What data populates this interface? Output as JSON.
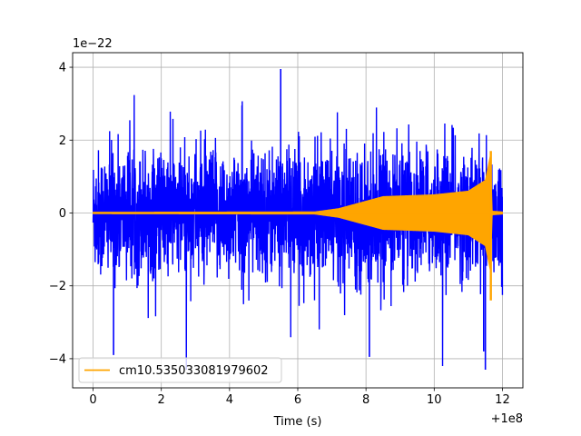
{
  "chart_data": {
    "type": "line",
    "xlabel": "Time (s)",
    "x_offset_text": "+1e8",
    "y_scale_text": "1e−22",
    "xlim": [
      -0.6,
      12.6
    ],
    "ylim": [
      -4.8,
      4.4
    ],
    "x_ticks": [
      0,
      2,
      4,
      6,
      8,
      10,
      12
    ],
    "x_tick_labels": [
      "0",
      "2",
      "4",
      "6",
      "8",
      "10",
      "12"
    ],
    "y_ticks": [
      -4,
      -2,
      0,
      2,
      4
    ],
    "y_tick_labels": [
      "−4",
      "−2",
      "0",
      "2",
      "4"
    ],
    "grid": true,
    "legend_position": "lower-left",
    "series": [
      {
        "color": "#0000ff",
        "x_range": [
          0,
          12
        ],
        "typical_amplitude": 1.6,
        "peak_min": -4.3,
        "peak_max": 3.95
      },
      {
        "name": "cm10.535033081979602",
        "color": "#ffa500",
        "x_range": [
          0,
          12
        ],
        "envelope": [
          {
            "x": 0,
            "amp": 0.02
          },
          {
            "x": 6.5,
            "amp": 0.03
          },
          {
            "x": 7.2,
            "amp": 0.12
          },
          {
            "x": 8.5,
            "amp": 0.45
          },
          {
            "x": 10.0,
            "amp": 0.5
          },
          {
            "x": 11.0,
            "amp": 0.6
          },
          {
            "x": 11.5,
            "amp": 0.9
          },
          {
            "x": 11.65,
            "amp": 1.6
          },
          {
            "x": 11.7,
            "amp": 0.05
          },
          {
            "x": 12.0,
            "amp": 0.03
          }
        ],
        "peak_max": 1.7,
        "peak_min": -2.4
      }
    ]
  }
}
